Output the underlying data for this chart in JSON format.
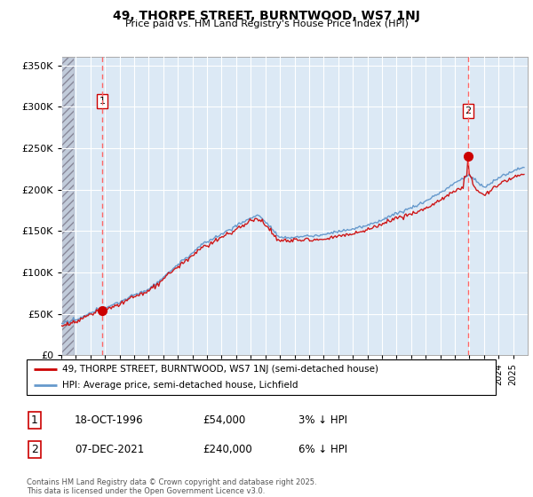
{
  "title": "49, THORPE STREET, BURNTWOOD, WS7 1NJ",
  "subtitle": "Price paid vs. HM Land Registry's House Price Index (HPI)",
  "legend_line1": "49, THORPE STREET, BURNTWOOD, WS7 1NJ (semi-detached house)",
  "legend_line2": "HPI: Average price, semi-detached house, Lichfield",
  "sale1_date": "18-OCT-1996",
  "sale1_price": 54000,
  "sale1_label": "3% ↓ HPI",
  "sale2_date": "07-DEC-2021",
  "sale2_price": 240000,
  "sale2_label": "6% ↓ HPI",
  "footnote": "Contains HM Land Registry data © Crown copyright and database right 2025.\nThis data is licensed under the Open Government Licence v3.0.",
  "hpi_color": "#6699cc",
  "price_color": "#cc0000",
  "sale_marker_color": "#cc0000",
  "vline_color": "#ff6666",
  "bg_color": "#dce9f5",
  "ylim": [
    0,
    360000
  ],
  "xstart_year": 1994,
  "xend_year": 2026,
  "t_sale1": 1996.8,
  "t_sale2": 2021.92
}
